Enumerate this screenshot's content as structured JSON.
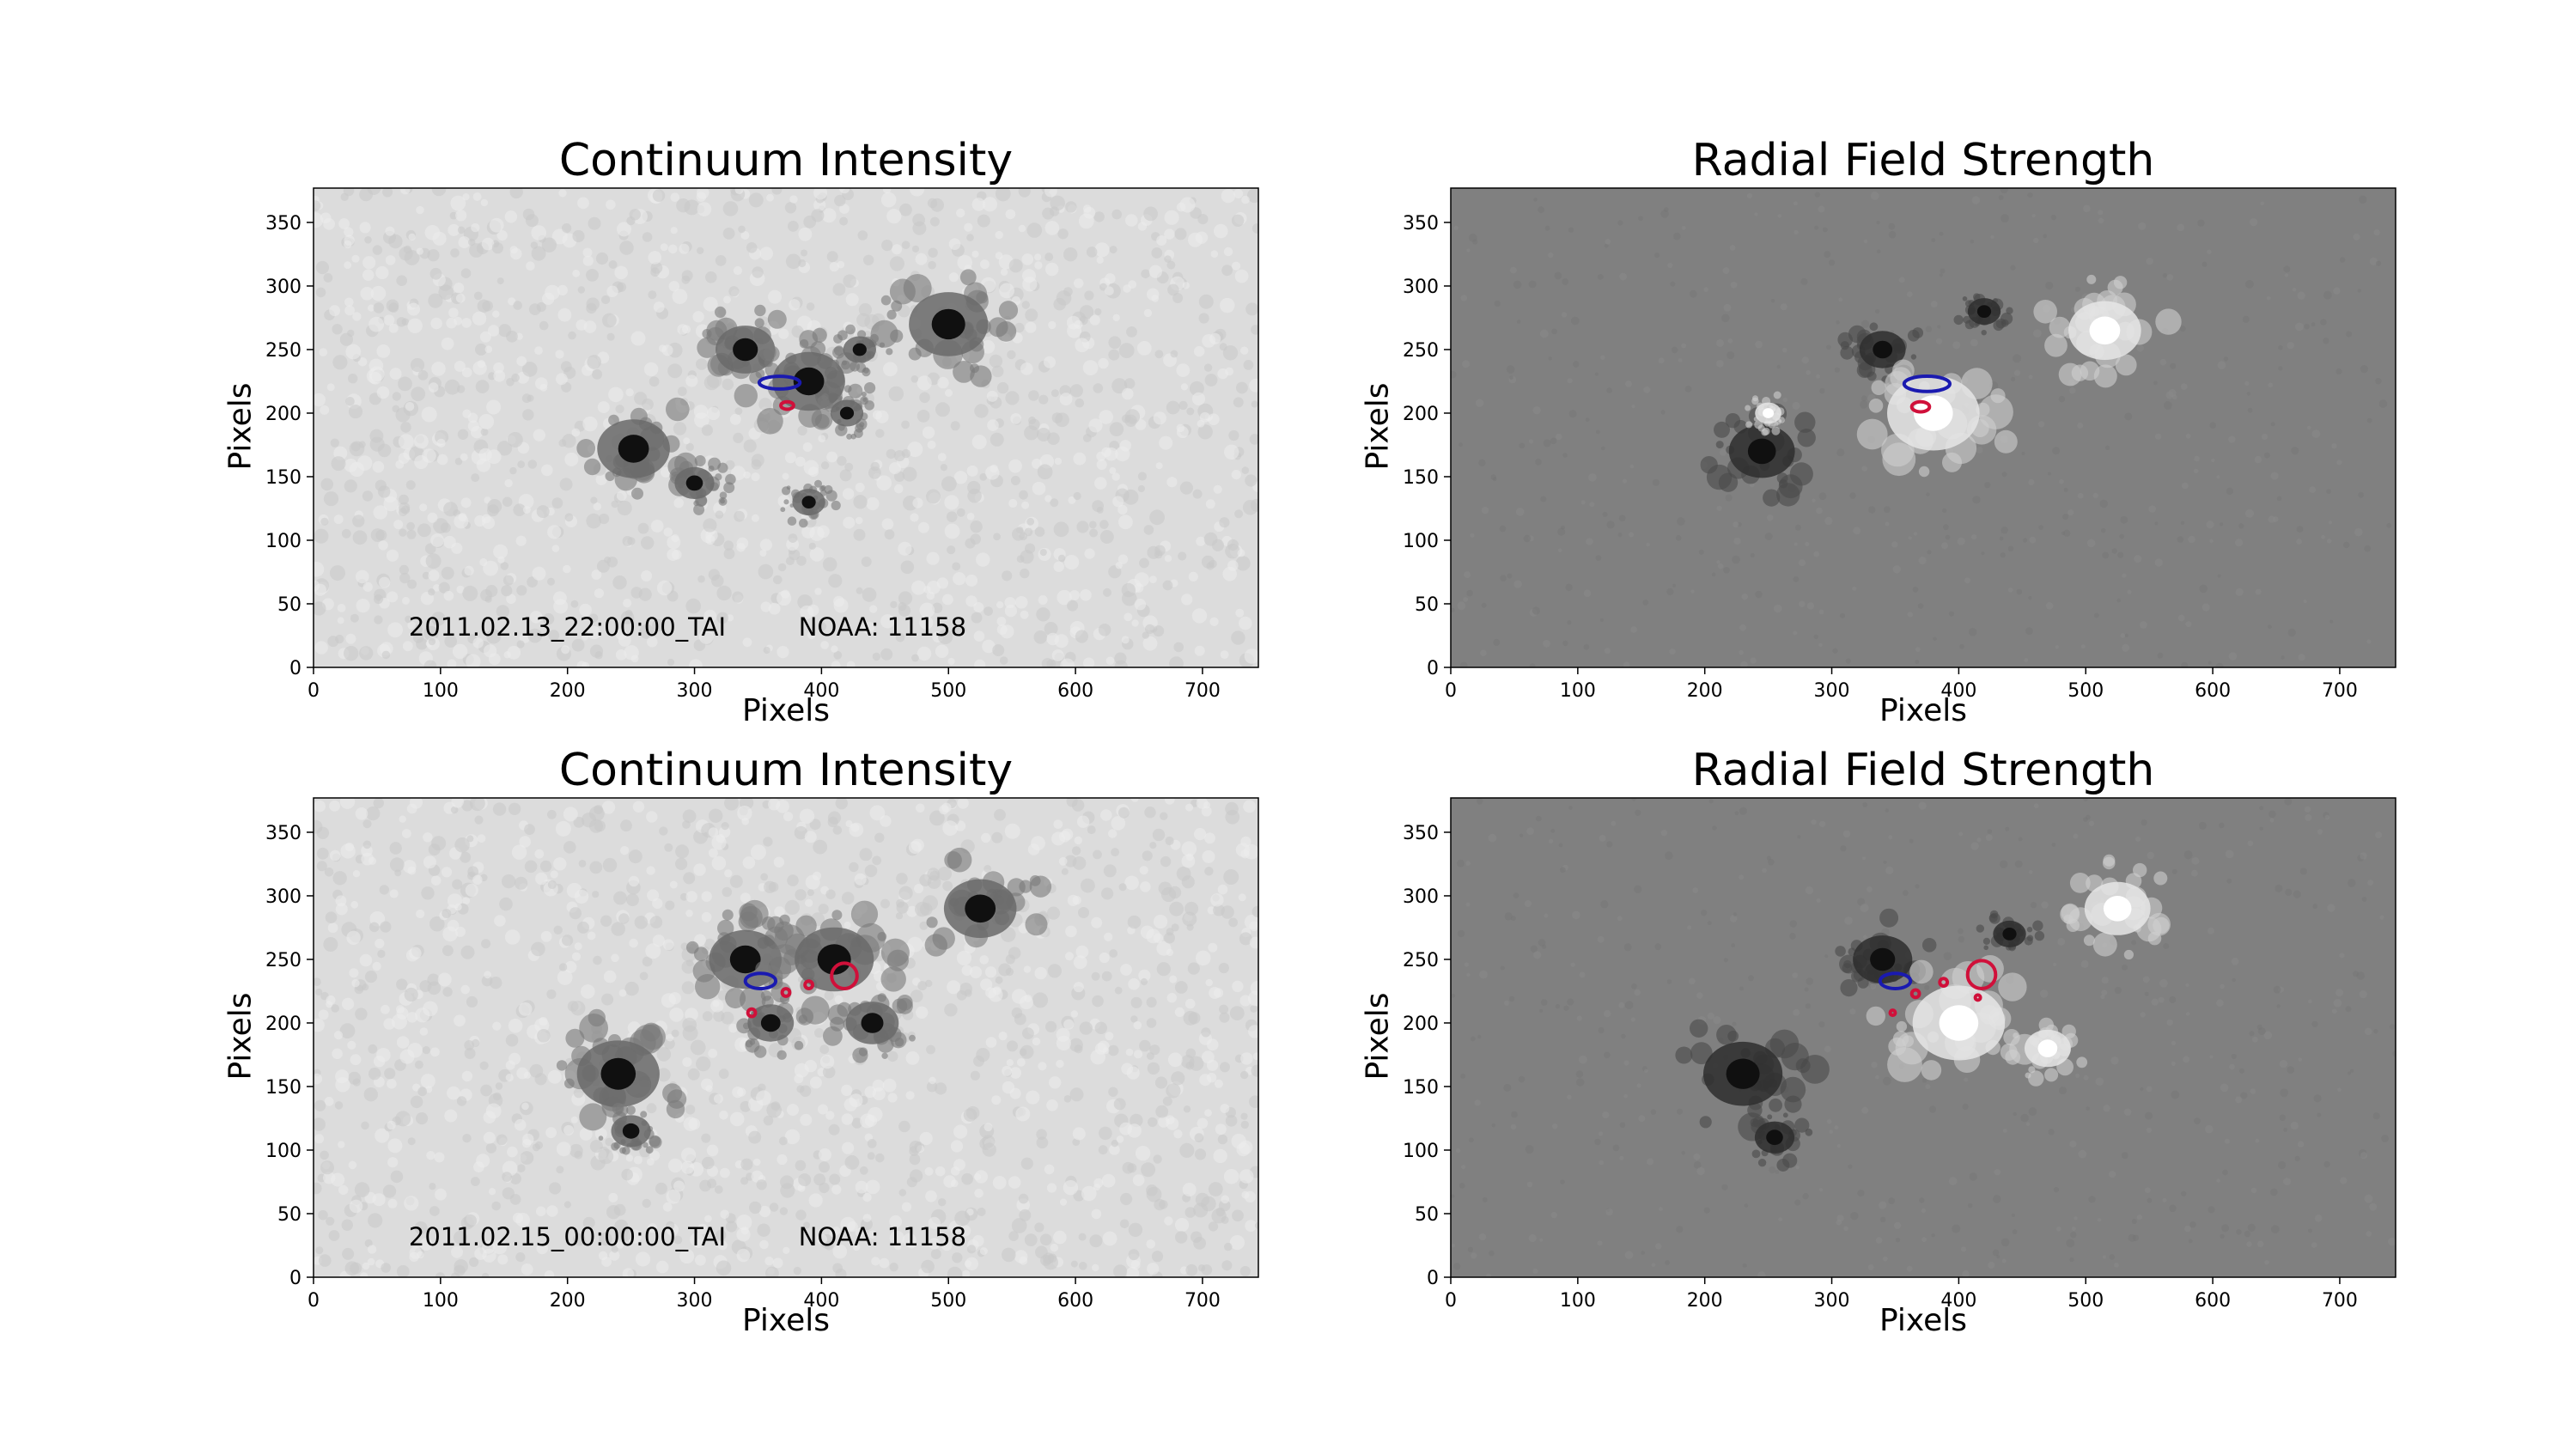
{
  "chart_data": [
    {
      "type": "heatmap",
      "panel": "top-left",
      "title": "Continuum Intensity",
      "xlabel": "Pixels",
      "ylabel": "Pixels",
      "xlim": [
        0,
        744
      ],
      "ylim": [
        0,
        377
      ],
      "xticks": [
        "0",
        "100",
        "200",
        "300",
        "400",
        "500",
        "600",
        "700"
      ],
      "yticks": [
        "0",
        "50",
        "100",
        "150",
        "200",
        "250",
        "300",
        "350"
      ],
      "colormap": "grayscale",
      "background_color": "#dcdcdc",
      "annotations": [
        "2011.02.13_22:00:00_TAI",
        "NOAA: 11158"
      ],
      "contours": [
        {
          "color": "#1a1ab0",
          "x": 367,
          "y": 224,
          "rx": 16,
          "ry": 5
        },
        {
          "color": "#d0103a",
          "x": 373,
          "y": 206,
          "rx": 5,
          "ry": 3
        }
      ],
      "dark_features": [
        {
          "x": 252,
          "y": 172,
          "r": 22
        },
        {
          "x": 390,
          "y": 130,
          "r": 10
        },
        {
          "x": 300,
          "y": 145,
          "r": 12
        },
        {
          "x": 340,
          "y": 250,
          "r": 18
        },
        {
          "x": 390,
          "y": 225,
          "r": 22
        },
        {
          "x": 500,
          "y": 270,
          "r": 24
        },
        {
          "x": 430,
          "y": 250,
          "r": 10
        },
        {
          "x": 420,
          "y": 200,
          "r": 10
        }
      ]
    },
    {
      "type": "heatmap",
      "panel": "top-right",
      "title": "Radial Field Strength",
      "xlabel": "Pixels",
      "ylabel": "Pixels",
      "xlim": [
        0,
        744
      ],
      "ylim": [
        0,
        377
      ],
      "xticks": [
        "0",
        "100",
        "200",
        "300",
        "400",
        "500",
        "600",
        "700"
      ],
      "yticks": [
        "0",
        "50",
        "100",
        "150",
        "200",
        "250",
        "300",
        "350"
      ],
      "colormap": "grayscale",
      "background_color": "#808080",
      "contours": [
        {
          "color": "#1a1ab0",
          "x": 375,
          "y": 223,
          "rx": 18,
          "ry": 6
        },
        {
          "color": "#d0103a",
          "x": 370,
          "y": 205,
          "rx": 7,
          "ry": 4
        }
      ],
      "dark_features": [
        {
          "x": 245,
          "y": 170,
          "r": 20
        },
        {
          "x": 340,
          "y": 250,
          "r": 14
        },
        {
          "x": 420,
          "y": 280,
          "r": 10
        }
      ],
      "bright_features": [
        {
          "x": 515,
          "y": 265,
          "r": 22
        },
        {
          "x": 380,
          "y": 200,
          "r": 28
        },
        {
          "x": 250,
          "y": 200,
          "r": 8
        }
      ]
    },
    {
      "type": "heatmap",
      "panel": "bottom-left",
      "title": "Continuum Intensity",
      "xlabel": "Pixels",
      "ylabel": "Pixels",
      "xlim": [
        0,
        744
      ],
      "ylim": [
        0,
        377
      ],
      "xticks": [
        "0",
        "100",
        "200",
        "300",
        "400",
        "500",
        "600",
        "700"
      ],
      "yticks": [
        "0",
        "50",
        "100",
        "150",
        "200",
        "250",
        "300",
        "350"
      ],
      "colormap": "grayscale",
      "background_color": "#dcdcdc",
      "annotations": [
        "2011.02.15_00:00:00_TAI",
        "NOAA: 11158"
      ],
      "contours": [
        {
          "color": "#1a1ab0",
          "x": 352,
          "y": 233,
          "rx": 12,
          "ry": 6
        },
        {
          "color": "#d0103a",
          "x": 418,
          "y": 237,
          "rx": 10,
          "ry": 10
        },
        {
          "color": "#d0103a",
          "x": 372,
          "y": 224,
          "rx": 3,
          "ry": 3
        },
        {
          "color": "#d0103a",
          "x": 390,
          "y": 230,
          "rx": 3,
          "ry": 3
        },
        {
          "color": "#d0103a",
          "x": 345,
          "y": 208,
          "rx": 3,
          "ry": 3
        }
      ],
      "dark_features": [
        {
          "x": 240,
          "y": 160,
          "r": 25
        },
        {
          "x": 250,
          "y": 115,
          "r": 12
        },
        {
          "x": 340,
          "y": 250,
          "r": 22
        },
        {
          "x": 410,
          "y": 250,
          "r": 24
        },
        {
          "x": 525,
          "y": 290,
          "r": 22
        },
        {
          "x": 440,
          "y": 200,
          "r": 16
        },
        {
          "x": 360,
          "y": 200,
          "r": 14
        }
      ]
    },
    {
      "type": "heatmap",
      "panel": "bottom-right",
      "title": "Radial Field Strength",
      "xlabel": "Pixels",
      "ylabel": "Pixels",
      "xlim": [
        0,
        744
      ],
      "ylim": [
        0,
        377
      ],
      "xticks": [
        "0",
        "100",
        "200",
        "300",
        "400",
        "500",
        "600",
        "700"
      ],
      "yticks": [
        "0",
        "50",
        "100",
        "150",
        "200",
        "250",
        "300",
        "350"
      ],
      "colormap": "grayscale",
      "background_color": "#808080",
      "contours": [
        {
          "color": "#1a1ab0",
          "x": 350,
          "y": 233,
          "rx": 12,
          "ry": 6
        },
        {
          "color": "#d0103a",
          "x": 418,
          "y": 238,
          "rx": 11,
          "ry": 11
        },
        {
          "color": "#d0103a",
          "x": 366,
          "y": 223,
          "rx": 3,
          "ry": 3
        },
        {
          "color": "#d0103a",
          "x": 388,
          "y": 232,
          "rx": 3,
          "ry": 3
        },
        {
          "color": "#d0103a",
          "x": 348,
          "y": 208,
          "rx": 2,
          "ry": 2
        },
        {
          "color": "#d0103a",
          "x": 415,
          "y": 220,
          "rx": 2,
          "ry": 2
        }
      ],
      "dark_features": [
        {
          "x": 230,
          "y": 160,
          "r": 24
        },
        {
          "x": 255,
          "y": 110,
          "r": 12
        },
        {
          "x": 340,
          "y": 250,
          "r": 18
        },
        {
          "x": 440,
          "y": 270,
          "r": 10
        }
      ],
      "bright_features": [
        {
          "x": 525,
          "y": 290,
          "r": 20
        },
        {
          "x": 400,
          "y": 200,
          "r": 28
        },
        {
          "x": 470,
          "y": 180,
          "r": 14
        }
      ]
    }
  ]
}
